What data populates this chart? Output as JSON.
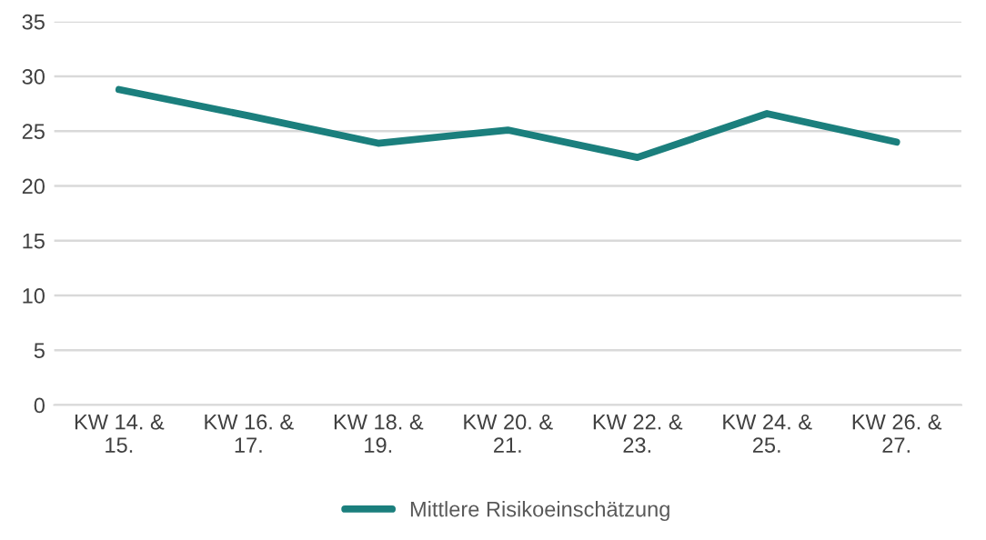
{
  "chart_data": {
    "type": "line",
    "categories": [
      "KW 14. &\n15.",
      "KW 16. &\n17.",
      "KW 18. &\n19.",
      "KW 20. &\n21.",
      "KW 22. &\n23.",
      "KW 24. &\n25.",
      "KW 26. &\n27."
    ],
    "series": [
      {
        "name": "Mittlere Risikoeinschätzung",
        "color": "#1b7f7d",
        "values": [
          28.8,
          26.4,
          23.9,
          25.1,
          22.6,
          26.6,
          24.0
        ]
      }
    ],
    "ylim": [
      0,
      35
    ],
    "yticks": [
      0,
      5,
      10,
      15,
      20,
      25,
      30,
      35
    ],
    "grid": "y",
    "legend": "bottom",
    "marker": "none",
    "line_style": "solid"
  }
}
